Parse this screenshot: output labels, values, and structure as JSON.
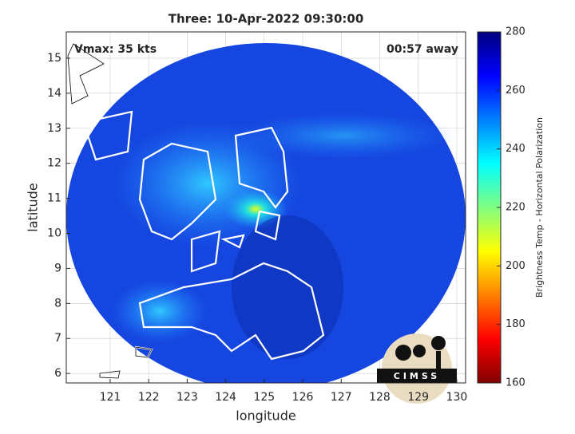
{
  "map": {
    "title": "Three: 10-Apr-2022 09:30:00",
    "annotation_left": "Vmax: 35 kts",
    "annotation_right": "00:57 away",
    "xlabel": "longitude",
    "ylabel": "latitude",
    "xlim": [
      119.86,
      130.23
    ],
    "ylim": [
      5.73,
      15.75
    ],
    "xticks": [
      121,
      122,
      123,
      124,
      125,
      126,
      127,
      128,
      129,
      130
    ],
    "yticks": [
      6,
      7,
      8,
      9,
      10,
      11,
      12,
      13,
      14,
      15
    ],
    "grid": true,
    "logo": "CIMSS"
  },
  "colorbar": {
    "label": "Brightness Temp - Horizontal Polarization",
    "clim": [
      160,
      280
    ],
    "ticks": [
      160,
      180,
      200,
      220,
      240,
      260,
      280
    ]
  }
}
